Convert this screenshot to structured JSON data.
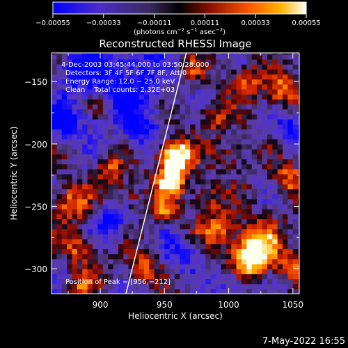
{
  "chart_data": {
    "type": "heatmap",
    "title": "Reconstructed RHESSI Image",
    "xlabel": "Heliocentric X (arcsec)",
    "ylabel": "Heliocentric Y (arcsec)",
    "xlim": [
      862,
      1055
    ],
    "ylim": [
      -320,
      -127
    ],
    "x_ticks": [
      900,
      950,
      1000,
      1050
    ],
    "y_ticks": [
      -300,
      -250,
      -200,
      -150
    ],
    "x_tick_labels": [
      "900",
      "950",
      "1000",
      "1050"
    ],
    "y_tick_labels": [
      "−300",
      "−250",
      "−200",
      "−150"
    ],
    "colorbar": {
      "min": -0.00055,
      "max": 0.00055,
      "ticks": [
        -0.00055,
        -0.00033,
        -0.00011,
        0.00011,
        0.00033,
        0.00055
      ],
      "tick_labels": [
        "−0.00055",
        "−0.00033",
        "−0.00011",
        "0.00011",
        "0.00033",
        "0.00055"
      ],
      "unit_base": "(photons cm",
      "unit_sup1": "−2",
      "unit_mid": " s",
      "unit_sup2": "−1",
      "unit_tail": " asec",
      "unit_sup3": "−2",
      "unit_close": ")"
    },
    "annotations": {
      "time_range": "4-Dec-2003 03:45:44.000 to 03:50:28.000",
      "detectors": "Detectors: 3F 4F 5F 6F 7F 8F, Att 0",
      "energy": "Energy Range: 12.0 − 25.0 keV",
      "clean": "Clean    Total counts: 2.32E+03",
      "peak": "Position of Peak = [956,−212]"
    },
    "peak": {
      "x": 956,
      "y": -212
    },
    "limb_line": [
      [
        920,
        -320
      ],
      [
        967,
        -127
      ]
    ]
  },
  "footer": {
    "date": "7-May-2022 16:55"
  },
  "colors": {
    "limb": "#ffffff",
    "background": "#000000"
  }
}
